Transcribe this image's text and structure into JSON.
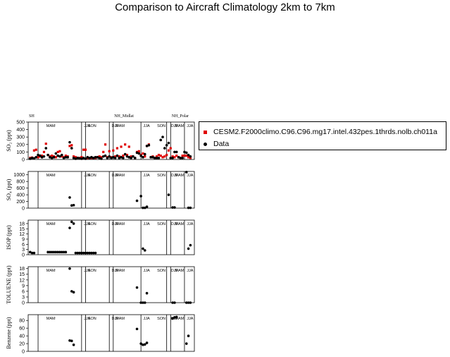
{
  "title": "Comparison to Aircraft Climatology  2km to 7km",
  "colors": {
    "model": "#e00000",
    "data": "#000000"
  },
  "regions": [
    "SH",
    "NH_Midlat",
    "NH_Polar"
  ],
  "legend": {
    "model": "CESM2.F2000climo.C96.C96.mg17.intel.432pes.1thrds.nolb.ch011a",
    "data": "Data"
  },
  "chart_data": [
    {
      "type": "scatter",
      "ylabel": "SO₂ (ppt)",
      "ylim": [
        0,
        500
      ],
      "yticks": [
        0,
        100,
        200,
        300,
        400,
        500
      ],
      "ytick_labels": [
        "0",
        "100",
        "200",
        "300",
        "400",
        "500"
      ],
      "season_labels": [
        {
          "text": "MAM",
          "x": 9
        },
        {
          "text": "JJA",
          "x": 28
        },
        {
          "text": "SON",
          "x": 30
        },
        {
          "text": "DJF",
          "x": 42
        },
        {
          "text": "MAM",
          "x": 44
        },
        {
          "text": "JJA",
          "x": 58
        },
        {
          "text": "SON",
          "x": 65
        },
        {
          "text": "DJF",
          "x": 72
        },
        {
          "text": "MAM",
          "x": 74
        },
        {
          "text": "JJA",
          "x": 80
        }
      ],
      "series": [
        {
          "name": "CESM2.F2000climo.C96.C96.mg17.intel.432pes.1thrds.nolb.ch011a",
          "marker": "square",
          "x": [
            1,
            2,
            3,
            4,
            5,
            6,
            7,
            8,
            9,
            10,
            11,
            12,
            13,
            14,
            15,
            16,
            17,
            18,
            19,
            20,
            21,
            22,
            23,
            24,
            25,
            26,
            27,
            28,
            29,
            30,
            31,
            32,
            33,
            34,
            35,
            36,
            37,
            38,
            39,
            40,
            41,
            42,
            43,
            44,
            45,
            46,
            47,
            48,
            49,
            50,
            51,
            52,
            53,
            54,
            55,
            56,
            57,
            58,
            59,
            60,
            61,
            62,
            63,
            64,
            65,
            66,
            67,
            68,
            69,
            70,
            71,
            72,
            73,
            74,
            75,
            76,
            77,
            78,
            79,
            80,
            81,
            82
          ],
          "y": [
            20,
            25,
            120,
            130,
            30,
            40,
            50,
            100,
            210,
            60,
            40,
            50,
            40,
            30,
            100,
            110,
            40,
            30,
            50,
            40,
            180,
            190,
            40,
            30,
            20,
            20,
            30,
            130,
            130,
            20,
            20,
            20,
            20,
            20,
            30,
            40,
            30,
            100,
            200,
            30,
            110,
            30,
            120,
            40,
            150,
            40,
            170,
            50,
            200,
            60,
            170,
            40,
            40,
            20,
            100,
            110,
            60,
            80,
            40,
            180,
            200,
            30,
            40,
            20,
            40,
            60,
            50,
            30,
            40,
            60,
            120,
            150,
            40,
            30,
            50,
            30,
            20,
            50,
            50,
            50,
            30,
            20
          ]
        },
        {
          "name": "Data",
          "marker": "circle",
          "x": [
            1,
            2,
            3,
            4,
            5,
            6,
            7,
            8,
            9,
            10,
            11,
            12,
            13,
            14,
            15,
            16,
            17,
            18,
            19,
            20,
            21,
            22,
            23,
            24,
            25,
            26,
            27,
            28,
            29,
            30,
            31,
            32,
            33,
            34,
            35,
            36,
            37,
            38,
            39,
            40,
            41,
            42,
            43,
            44,
            45,
            46,
            47,
            48,
            49,
            50,
            51,
            52,
            53,
            54,
            55,
            56,
            57,
            58,
            59,
            60,
            61,
            62,
            63,
            64,
            65,
            66,
            67,
            68,
            69,
            70,
            71,
            72,
            73,
            74,
            75,
            76,
            77,
            78,
            79,
            80,
            81,
            82
          ],
          "y": [
            10,
            20,
            15,
            30,
            60,
            50,
            30,
            40,
            150,
            60,
            30,
            20,
            30,
            80,
            50,
            40,
            60,
            20,
            30,
            30,
            230,
            150,
            20,
            10,
            20,
            15,
            10,
            20,
            10,
            30,
            20,
            30,
            20,
            30,
            30,
            20,
            10,
            40,
            50,
            20,
            40,
            20,
            30,
            20,
            50,
            20,
            30,
            20,
            70,
            40,
            30,
            20,
            40,
            20,
            90,
            80,
            50,
            30,
            70,
            180,
            190,
            30,
            30,
            20,
            20,
            20,
            260,
            300,
            150,
            190,
            220,
            20,
            20,
            100,
            100,
            30,
            20,
            20,
            100,
            90,
            60,
            40
          ]
        }
      ]
    },
    {
      "type": "scatter",
      "ylabel": "SO₄ (ppt)",
      "ylim": [
        0,
        1100
      ],
      "yticks": [
        0,
        200,
        400,
        600,
        800,
        1000
      ],
      "ytick_labels": [
        "0",
        "200",
        "400",
        "600",
        "800",
        "1000"
      ],
      "season_labels": [
        {
          "text": "MAM",
          "x": 9
        },
        {
          "text": "JJA",
          "x": 28
        },
        {
          "text": "SON",
          "x": 30
        },
        {
          "text": "DJF",
          "x": 42
        },
        {
          "text": "MAM",
          "x": 44
        },
        {
          "text": "JJA",
          "x": 58
        },
        {
          "text": "SON",
          "x": 65
        },
        {
          "text": "DJF",
          "x": 72
        },
        {
          "text": "MAM",
          "x": 74
        },
        {
          "text": "JJA",
          "x": 80
        }
      ],
      "series": [
        {
          "name": "Data",
          "marker": "circle",
          "x": [
            21,
            22,
            23,
            55,
            57,
            58,
            59,
            60,
            71,
            73,
            74,
            80,
            81,
            82
          ],
          "y": [
            320,
            80,
            90,
            220,
            360,
            10,
            10,
            40,
            400,
            20,
            20,
            1080,
            10,
            10
          ]
        }
      ]
    },
    {
      "type": "scatter",
      "ylabel": "ISOP (ppt)",
      "ylim": [
        0,
        20
      ],
      "yticks": [
        0,
        3,
        6,
        9,
        12,
        15,
        18
      ],
      "ytick_labels": [
        "0",
        "3",
        "6",
        "9",
        "12",
        "15",
        "18"
      ],
      "season_labels": [
        {
          "text": "MAM",
          "x": 9
        },
        {
          "text": "JJA",
          "x": 28
        },
        {
          "text": "SON",
          "x": 30
        },
        {
          "text": "DJF",
          "x": 42
        },
        {
          "text": "MAM",
          "x": 44
        },
        {
          "text": "JJA",
          "x": 58
        },
        {
          "text": "SON",
          "x": 65
        },
        {
          "text": "DJF",
          "x": 72
        },
        {
          "text": "MAM",
          "x": 74
        },
        {
          "text": "JJA",
          "x": 80
        }
      ],
      "series": [
        {
          "name": "Data",
          "marker": "circle",
          "x": [
            1,
            2,
            3,
            10,
            11,
            12,
            13,
            14,
            15,
            16,
            17,
            18,
            19,
            21,
            22,
            23,
            24,
            25,
            26,
            27,
            28,
            29,
            30,
            31,
            32,
            33,
            34,
            58,
            59,
            81,
            82
          ],
          "y": [
            1.5,
            1,
            1,
            1.5,
            1.5,
            1.5,
            1.5,
            1.5,
            1.5,
            1.5,
            1.5,
            1.5,
            1.5,
            15.5,
            19,
            18,
            1,
            1,
            1,
            1,
            1,
            1,
            1,
            1,
            1,
            1,
            1,
            3.5,
            2.5,
            3.5,
            5.5
          ]
        }
      ]
    },
    {
      "type": "scatter",
      "ylabel": "TOLUENE (ppt)",
      "ylim": [
        0,
        19
      ],
      "yticks": [
        0,
        3,
        6,
        9,
        12,
        15,
        18
      ],
      "ytick_labels": [
        "0",
        "3",
        "6",
        "9",
        "12",
        "15",
        "18"
      ],
      "season_labels": [
        {
          "text": "MAM",
          "x": 9
        },
        {
          "text": "JJA",
          "x": 28
        },
        {
          "text": "SON",
          "x": 30
        },
        {
          "text": "DJF",
          "x": 42
        },
        {
          "text": "MAM",
          "x": 44
        },
        {
          "text": "JJA",
          "x": 58
        },
        {
          "text": "SON",
          "x": 65
        },
        {
          "text": "DJF",
          "x": 72
        },
        {
          "text": "MAM",
          "x": 74
        },
        {
          "text": "JJA",
          "x": 80
        }
      ],
      "series": [
        {
          "name": "Data",
          "marker": "circle",
          "x": [
            21,
            22,
            23,
            55,
            57,
            58,
            59,
            60,
            73,
            74,
            80,
            81,
            82
          ],
          "y": [
            18,
            6,
            5.5,
            8,
            0,
            0,
            0,
            5,
            0,
            0,
            0,
            0,
            0
          ]
        }
      ]
    },
    {
      "type": "scatter",
      "ylabel": "Benzene (ppt)",
      "ylim": [
        0,
        95
      ],
      "yticks": [
        0,
        20,
        40,
        60,
        80
      ],
      "ytick_labels": [
        "0",
        "20",
        "40",
        "60",
        "80"
      ],
      "season_labels": [
        {
          "text": "MAM",
          "x": 9
        },
        {
          "text": "JJA",
          "x": 28
        },
        {
          "text": "SON",
          "x": 30
        },
        {
          "text": "DJF",
          "x": 42
        },
        {
          "text": "MAM",
          "x": 44
        },
        {
          "text": "JJA",
          "x": 58
        },
        {
          "text": "SON",
          "x": 65
        },
        {
          "text": "DJF",
          "x": 72
        },
        {
          "text": "MAM",
          "x": 74
        },
        {
          "text": "JJA",
          "x": 80
        }
      ],
      "series": [
        {
          "name": "Data",
          "marker": "circle",
          "x": [
            21,
            22,
            23,
            55,
            57,
            58,
            59,
            60,
            73,
            74,
            75,
            80,
            81
          ],
          "y": [
            28,
            27,
            17,
            58,
            20,
            17,
            18,
            22,
            85,
            88,
            89,
            20,
            40
          ]
        }
      ]
    }
  ]
}
